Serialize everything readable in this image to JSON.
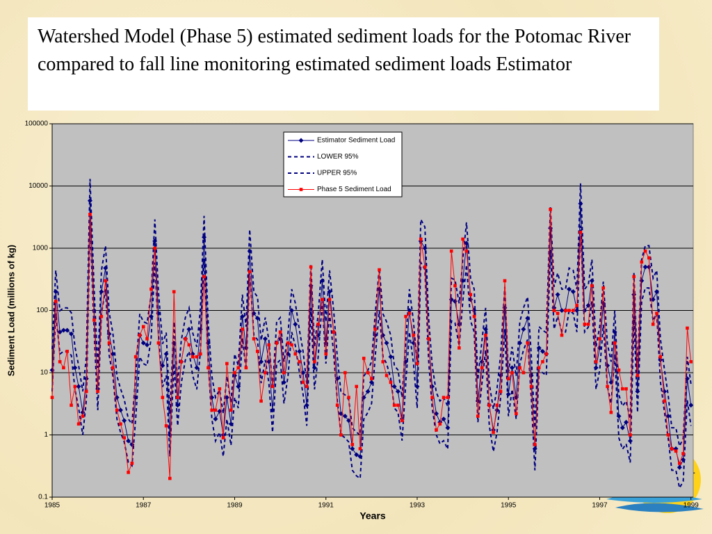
{
  "chart_data": {
    "type": "line",
    "title": "Watershed Model (Phase 5) estimated sediment loads for the Potomac River compared to fall line monitoring estimated sediment loads Estimator",
    "x_label": "Years",
    "y_label": "Sediment Load (millions of kg)",
    "log_y": true,
    "grid": true,
    "legend": "top",
    "xlim": [
      1985,
      1999.05
    ],
    "xticks": [
      1985,
      1987,
      1989,
      1991,
      1993,
      1995,
      1997,
      1999
    ],
    "ylim": [
      0.1,
      100000
    ],
    "yticks": [
      0.1,
      1,
      10,
      100,
      1000,
      10000,
      100000
    ],
    "x": [
      1985,
      1985.08,
      1985.17,
      1985.25,
      1985.33,
      1985.42,
      1985.5,
      1985.58,
      1985.67,
      1985.75,
      1985.83,
      1985.92,
      1986,
      1986.08,
      1986.17,
      1986.25,
      1986.33,
      1986.42,
      1986.5,
      1986.58,
      1986.67,
      1986.75,
      1986.83,
      1986.92,
      1987,
      1987.08,
      1987.17,
      1987.25,
      1987.33,
      1987.42,
      1987.5,
      1987.58,
      1987.67,
      1987.75,
      1987.83,
      1987.92,
      1988,
      1988.08,
      1988.17,
      1988.25,
      1988.33,
      1988.42,
      1988.5,
      1988.58,
      1988.67,
      1988.75,
      1988.83,
      1988.92,
      1989,
      1989.08,
      1989.17,
      1989.25,
      1989.33,
      1989.42,
      1989.5,
      1989.58,
      1989.67,
      1989.75,
      1989.83,
      1989.92,
      1990,
      1990.08,
      1990.17,
      1990.25,
      1990.33,
      1990.42,
      1990.5,
      1990.58,
      1990.67,
      1990.75,
      1990.83,
      1990.92,
      1991,
      1991.08,
      1991.17,
      1991.25,
      1991.33,
      1991.42,
      1991.5,
      1991.58,
      1991.67,
      1991.75,
      1991.83,
      1991.92,
      1992,
      1992.08,
      1992.17,
      1992.25,
      1992.33,
      1992.42,
      1992.5,
      1992.58,
      1992.67,
      1992.75,
      1992.83,
      1992.92,
      1993,
      1993.08,
      1993.17,
      1993.25,
      1993.33,
      1993.42,
      1993.5,
      1993.58,
      1993.67,
      1993.75,
      1993.83,
      1993.92,
      1994,
      1994.08,
      1994.17,
      1994.25,
      1994.33,
      1994.42,
      1994.5,
      1994.58,
      1994.67,
      1994.75,
      1994.83,
      1994.92,
      1995,
      1995.08,
      1995.17,
      1995.25,
      1995.33,
      1995.42,
      1995.5,
      1995.58,
      1995.67,
      1995.75,
      1995.83,
      1995.92,
      1996,
      1996.08,
      1996.17,
      1996.25,
      1996.33,
      1996.42,
      1996.5,
      1996.58,
      1996.67,
      1996.75,
      1996.83,
      1996.92,
      1997,
      1997.08,
      1997.17,
      1997.25,
      1997.33,
      1997.42,
      1997.5,
      1997.58,
      1997.67,
      1997.75,
      1997.83,
      1997.92,
      1998,
      1998.08,
      1998.17,
      1998.25,
      1998.33,
      1998.42,
      1998.5,
      1998.58,
      1998.67,
      1998.75,
      1998.83,
      1998.92,
      1999
    ],
    "series": [
      {
        "name": "Estimator Sediment Load",
        "color": "#000080",
        "style": "marker-diamond",
        "values": [
          11,
          200,
          45,
          48,
          48,
          42,
          12,
          6,
          2.3,
          8,
          5800,
          100,
          5.5,
          200,
          480,
          42,
          20,
          4,
          2.5,
          1.7,
          0.8,
          0.7,
          4,
          40,
          30,
          28,
          80,
          1300,
          90,
          13,
          20,
          1,
          30,
          3,
          15,
          35,
          50,
          20,
          12,
          50,
          1500,
          30,
          4,
          1.8,
          2.4,
          1,
          4,
          1.5,
          9,
          6,
          80,
          25,
          900,
          90,
          75,
          15,
          35,
          15,
          2.5,
          30,
          35,
          7,
          20,
          100,
          60,
          22,
          10,
          3,
          250,
          12,
          40,
          300,
          30,
          200,
          45,
          8,
          2.2,
          2,
          1.7,
          0.6,
          0.48,
          0.45,
          4,
          5,
          7,
          40,
          220,
          40,
          30,
          18,
          6,
          5,
          1.8,
          15,
          100,
          30,
          6,
          1300,
          1000,
          35,
          6,
          2.2,
          1.6,
          1.8,
          1.3,
          150,
          140,
          60,
          300,
          1200,
          150,
          100,
          3.5,
          15,
          50,
          3,
          1.2,
          2.5,
          9,
          110,
          4.5,
          12,
          4,
          30,
          50,
          75,
          9,
          0.6,
          25,
          22,
          20,
          2100,
          110,
          180,
          100,
          100,
          220,
          200,
          100,
          5200,
          100,
          120,
          300,
          12,
          25,
          130,
          13,
          7,
          45,
          2,
          1.3,
          1.6,
          0.8,
          180,
          5,
          300,
          500,
          500,
          150,
          200,
          16,
          5,
          2,
          0.6,
          0.6,
          0.3,
          0.4,
          8,
          3
        ]
      },
      {
        "name": "LOWER 95%",
        "color": "#000080",
        "style": "dashed",
        "values": [
          5,
          90,
          20,
          22,
          22,
          19,
          5.4,
          2.7,
          1,
          3.6,
          2600,
          45,
          2.5,
          90,
          220,
          19,
          9,
          1.8,
          1.1,
          0.77,
          0.36,
          0.32,
          1.8,
          18,
          14,
          13,
          36,
          590,
          40,
          5.9,
          9,
          0.45,
          14,
          1.4,
          6.8,
          16,
          22,
          9,
          5.4,
          22,
          680,
          14,
          1.8,
          0.8,
          1.1,
          0.45,
          1.8,
          0.68,
          4,
          2.7,
          36,
          11,
          410,
          40,
          34,
          6.8,
          16,
          6.8,
          1.1,
          14,
          16,
          3.2,
          9,
          45,
          27,
          10,
          4.5,
          1.4,
          110,
          5.4,
          18,
          140,
          14,
          90,
          20,
          3.6,
          1,
          0.9,
          0.77,
          0.27,
          0.22,
          0.2,
          1.8,
          2.3,
          3.2,
          18,
          99,
          18,
          14,
          8.1,
          2.7,
          2.3,
          0.81,
          6.8,
          45,
          14,
          2.7,
          590,
          450,
          16,
          2.7,
          1,
          0.72,
          0.81,
          0.59,
          68,
          63,
          27,
          140,
          540,
          68,
          45,
          1.6,
          6.8,
          23,
          1.4,
          0.54,
          1.1,
          4.1,
          50,
          2,
          5.4,
          1.8,
          14,
          23,
          34,
          4.1,
          0.27,
          11,
          10,
          9,
          950,
          50,
          81,
          45,
          45,
          99,
          90,
          45,
          2300,
          45,
          54,
          140,
          5.4,
          11,
          59,
          5.9,
          3.2,
          20,
          0.9,
          0.59,
          0.72,
          0.36,
          81,
          2.3,
          140,
          230,
          230,
          68,
          90,
          7.2,
          2.3,
          0.9,
          0.27,
          0.27,
          0.14,
          0.18,
          3.6,
          1.4
        ]
      },
      {
        "name": "UPPER 95%",
        "color": "#000080",
        "style": "dashed",
        "values": [
          24,
          440,
          99,
          110,
          110,
          92,
          26,
          13,
          5,
          18,
          13000,
          220,
          12,
          440,
          1100,
          92,
          44,
          8.8,
          5.5,
          3.7,
          1.8,
          1.5,
          8.8,
          88,
          66,
          62,
          180,
          2900,
          200,
          29,
          44,
          2.2,
          66,
          6.6,
          33,
          77,
          110,
          44,
          26,
          110,
          3300,
          66,
          8.8,
          4,
          5.3,
          2.2,
          8.8,
          3.3,
          20,
          13,
          180,
          55,
          2000,
          200,
          165,
          33,
          77,
          33,
          5.5,
          66,
          77,
          15,
          44,
          220,
          130,
          48,
          22,
          6.6,
          550,
          26,
          88,
          660,
          66,
          440,
          99,
          18,
          4.8,
          4.4,
          3.7,
          1.3,
          1.1,
          1,
          8.8,
          11,
          15,
          88,
          480,
          88,
          66,
          40,
          13,
          11,
          4,
          33,
          220,
          66,
          13,
          2900,
          2200,
          77,
          13,
          4.8,
          3.5,
          4,
          2.9,
          330,
          310,
          130,
          660,
          2600,
          330,
          220,
          7.7,
          33,
          110,
          6.6,
          2.6,
          5.5,
          20,
          240,
          9.9,
          26,
          8.8,
          66,
          110,
          165,
          20,
          1.3,
          55,
          48,
          44,
          4600,
          240,
          400,
          220,
          220,
          480,
          440,
          220,
          11000,
          220,
          260,
          660,
          26,
          55,
          290,
          29,
          15,
          99,
          4.4,
          2.9,
          3.5,
          1.8,
          400,
          11,
          660,
          1100,
          1100,
          330,
          440,
          35,
          11,
          4.4,
          1.3,
          1.3,
          0.66,
          0.88,
          18,
          6.6
        ]
      },
      {
        "name": "Phase 5 Sediment Load",
        "color": "#ff0000",
        "style": "marker-square",
        "values": [
          4,
          140,
          15,
          12,
          22,
          3,
          6,
          1.5,
          2,
          5,
          3500,
          70,
          5,
          80,
          300,
          30,
          12,
          2.5,
          1.5,
          0.9,
          0.25,
          0.35,
          18,
          40,
          55,
          35,
          220,
          1000,
          30,
          4,
          1.4,
          0.2,
          200,
          4,
          15,
          35,
          28,
          18,
          18,
          20,
          350,
          12,
          2.5,
          2.5,
          5.5,
          0.9,
          14,
          2.5,
          10,
          12,
          50,
          12,
          420,
          35,
          22,
          3.5,
          10,
          28,
          6,
          30,
          45,
          10,
          30,
          28,
          20,
          15,
          7,
          6,
          500,
          15,
          60,
          150,
          20,
          150,
          45,
          3,
          1,
          10,
          4,
          0.7,
          6,
          0.6,
          17,
          10,
          8,
          50,
          450,
          15,
          9,
          7,
          3,
          3,
          1.7,
          80,
          90,
          40,
          14,
          1400,
          500,
          35,
          4,
          1.2,
          1.5,
          4,
          4,
          900,
          250,
          25,
          1400,
          900,
          180,
          80,
          2,
          12,
          40,
          3,
          1.1,
          3,
          5,
          300,
          8,
          10,
          2.2,
          12,
          10,
          30,
          6,
          0.7,
          12,
          15,
          20,
          4200,
          100,
          90,
          40,
          100,
          100,
          100,
          120,
          1800,
          60,
          60,
          250,
          15,
          35,
          230,
          6,
          2.3,
          30,
          11,
          5.5,
          5.5,
          1,
          350,
          9,
          600,
          900,
          700,
          60,
          90,
          18,
          3.5,
          1,
          0.6,
          0.55,
          0.35,
          0.5,
          52,
          15
        ]
      }
    ]
  }
}
